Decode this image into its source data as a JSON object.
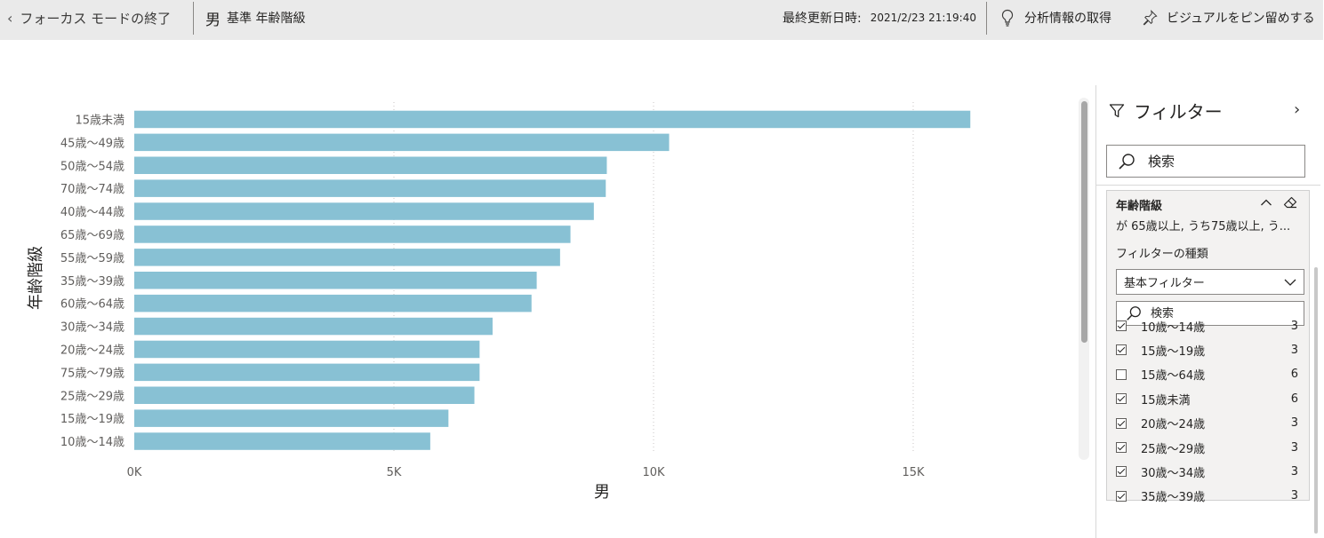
{
  "topbar": {
    "exit_label": "フォーカス モードの終了",
    "title_main": "男",
    "title_sub": "基準 年齢階級",
    "last_updated_label": "最終更新日時:",
    "last_updated_value": "2021/2/23 21:19:40",
    "insights_label": "分析情報の取得",
    "pin_label": "ビジュアルをピン留めする"
  },
  "chart_data": {
    "type": "bar",
    "orientation": "horizontal",
    "color": "#88c1d4",
    "categories": [
      "15歳未満",
      "45歳～49歳",
      "50歳～54歳",
      "70歳～74歳",
      "40歳～44歳",
      "65歳～69歳",
      "55歳～59歳",
      "35歳～39歳",
      "60歳～64歳",
      "30歳～34歳",
      "20歳～24歳",
      "75歳～79歳",
      "25歳～29歳",
      "15歳～19歳",
      "10歳～14歳"
    ],
    "values": [
      16100,
      10300,
      9100,
      9080,
      8850,
      8400,
      8200,
      7750,
      7650,
      6900,
      6650,
      6650,
      6550,
      6050,
      5700
    ],
    "x_ticks": [
      "0K",
      "5K",
      "10K",
      "15K"
    ],
    "x_tick_values": [
      0,
      5000,
      10000,
      15000
    ],
    "xlim": [
      0,
      17500
    ],
    "xlabel": "男",
    "ylabel": "年齢階級",
    "grid": "vertical-dotted"
  },
  "filter_pane": {
    "title": "フィルター",
    "search_placeholder": "検索",
    "card": {
      "field_title": "年齢階級",
      "summary": "が 65歳以上, うち75歳以上, う...",
      "type_label": "フィルターの種類",
      "type_value": "基本フィルター",
      "search_placeholder": "検索",
      "items": [
        {
          "label": "10歳～14歳",
          "count": "3",
          "checked": true
        },
        {
          "label": "15歳～19歳",
          "count": "3",
          "checked": true
        },
        {
          "label": "15歳～64歳",
          "count": "6",
          "checked": false
        },
        {
          "label": "15歳未満",
          "count": "6",
          "checked": true
        },
        {
          "label": "20歳～24歳",
          "count": "3",
          "checked": true
        },
        {
          "label": "25歳～29歳",
          "count": "3",
          "checked": true
        },
        {
          "label": "30歳～34歳",
          "count": "3",
          "checked": true
        },
        {
          "label": "35歳～39歳",
          "count": "3",
          "checked": true
        }
      ]
    }
  }
}
